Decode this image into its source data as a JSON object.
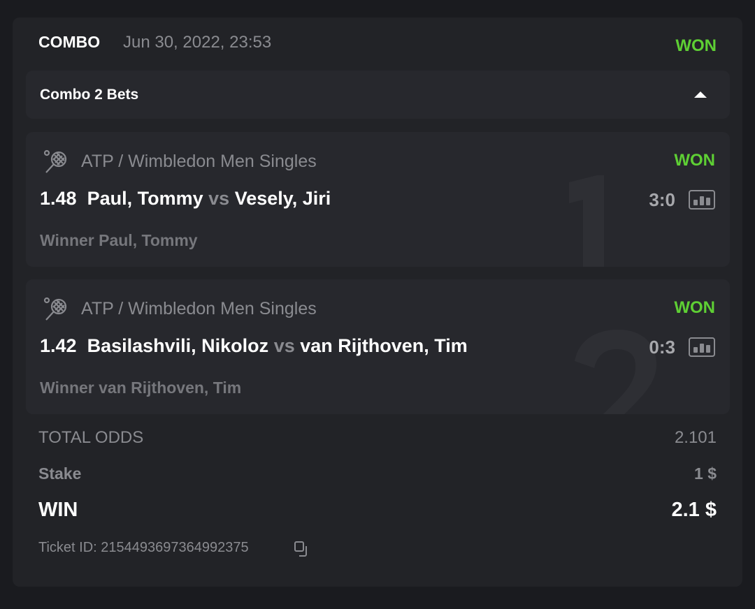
{
  "header": {
    "type": "COMBO",
    "datetime": "Jun 30, 2022, 23:53",
    "status": "WON"
  },
  "combo": {
    "label": "Combo 2 Bets",
    "toggle_icon": "caret-up-icon"
  },
  "bets": [
    {
      "index": "1",
      "league": "ATP / Wimbledon Men Singles",
      "status": "WON",
      "odds": "1.48",
      "home": "Paul, Tommy",
      "vs": "vs",
      "away": "Vesely, Jiri",
      "score": "3:0",
      "pick": "Winner Paul, Tommy"
    },
    {
      "index": "2",
      "league": "ATP / Wimbledon Men Singles",
      "status": "WON",
      "odds": "1.42",
      "home": "Basilashvili, Nikoloz",
      "vs": "vs",
      "away": "van Rijthoven, Tim",
      "score": "0:3",
      "pick": "Winner van Rijthoven, Tim"
    }
  ],
  "summary": {
    "total_odds_label": "TOTAL ODDS",
    "total_odds": "2.101",
    "stake_label": "Stake",
    "stake": "1 $",
    "win_label": "WIN",
    "win": "2.1 $",
    "ticket_label": "Ticket ID: 2154493697364992375"
  },
  "colors": {
    "won": "#5ecf34",
    "background": "#1a1b1f",
    "card": "#222327"
  }
}
